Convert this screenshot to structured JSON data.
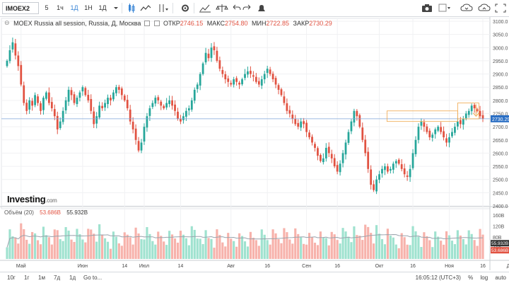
{
  "toolbar": {
    "symbol": "IMOEX2",
    "intervals": [
      "5",
      "1ч",
      "1Д",
      "1Н",
      "1Д"
    ],
    "active_interval_index": 2,
    "icons": [
      "dropdown-arrow-icon",
      "candles-icon",
      "indicators-icon",
      "drawing-icon",
      "gear-icon",
      "chart-type-icon",
      "scale-icon",
      "undo-icon",
      "redo-icon",
      "alert-icon",
      "camera-icon",
      "layout-icon",
      "cloud-download-icon",
      "cloud-upload-icon",
      "fullscreen-icon"
    ]
  },
  "legend": {
    "title": "MOEX Russia all session, Russia, Д, Москва",
    "open_label": "ОТКР",
    "open": "2746.15",
    "high_label": "МАКС",
    "high": "2754.80",
    "low_label": "МИН",
    "low": "2722.85",
    "close_label": "ЗАКР",
    "close": "2730.29"
  },
  "volume_legend": {
    "label": "Объём (20)",
    "value1": "53.686B",
    "value2": "55.932B"
  },
  "brand": {
    "name": "Investing",
    "suffix": ".com"
  },
  "bottombar": {
    "ranges": [
      "10г",
      "1г",
      "1м",
      "7д",
      "1д",
      "Go to..."
    ],
    "time": "16:05:12 (UTC+3)",
    "options": [
      "%",
      "log",
      "auto"
    ]
  },
  "chart_data": {
    "type": "candlestick",
    "price_axis": {
      "min": 2400,
      "max": 3100,
      "ticks": [
        2400,
        2450,
        2500,
        2550,
        2600,
        2650,
        2700,
        2750,
        2800,
        2850,
        2900,
        2950,
        3000,
        3050,
        3100
      ]
    },
    "current_price": {
      "value": 2730.29,
      "label": "2730.29"
    },
    "horizontal_line": 2730.29,
    "x_labels": [
      {
        "label": "Май",
        "bar": 5
      },
      {
        "label": "Июн",
        "bar": 27
      },
      {
        "label": "14",
        "bar": 42
      },
      {
        "label": "Июл",
        "bar": 49
      },
      {
        "label": "14",
        "bar": 62
      },
      {
        "label": "Авг",
        "bar": 80
      },
      {
        "label": "16",
        "bar": 93
      },
      {
        "label": "Сен",
        "bar": 107
      },
      {
        "label": "16",
        "bar": 118
      },
      {
        "label": "Окт",
        "bar": 133
      },
      {
        "label": "16",
        "bar": 145
      },
      {
        "label": "Ноя",
        "bar": 158
      },
      {
        "label": "16",
        "bar": 170
      },
      {
        "label": "Дек",
        "bar": 180
      },
      {
        "label": "16",
        "bar": 191
      }
    ],
    "closes": [
      2950,
      2990,
      3020,
      2970,
      2930,
      2860,
      2790,
      2760,
      2800,
      2780,
      2820,
      2790,
      2760,
      2810,
      2830,
      2790,
      2770,
      2740,
      2690,
      2720,
      2760,
      2800,
      2840,
      2820,
      2790,
      2810,
      2830,
      2850,
      2820,
      2800,
      2760,
      2710,
      2740,
      2780,
      2770,
      2790,
      2810,
      2800,
      2830,
      2850,
      2840,
      2820,
      2800,
      2770,
      2720,
      2690,
      2650,
      2610,
      2640,
      2700,
      2740,
      2770,
      2790,
      2810,
      2800,
      2780,
      2770,
      2790,
      2800,
      2780,
      2760,
      2730,
      2720,
      2740,
      2760,
      2770,
      2800,
      2840,
      2860,
      2900,
      2940,
      2980,
      2960,
      3000,
      2990,
      2950,
      2920,
      2900,
      2880,
      2870,
      2860,
      2880,
      2870,
      2860,
      2880,
      2900,
      2910,
      2900,
      2890,
      2870,
      2860,
      2880,
      2900,
      2920,
      2900,
      2880,
      2860,
      2840,
      2820,
      2790,
      2760,
      2750,
      2730,
      2710,
      2700,
      2720,
      2710,
      2680,
      2660,
      2640,
      2620,
      2590,
      2570,
      2580,
      2620,
      2600,
      2580,
      2550,
      2530,
      2560,
      2600,
      2640,
      2680,
      2720,
      2760,
      2740,
      2700,
      2650,
      2600,
      2540,
      2480,
      2460,
      2500,
      2520,
      2540,
      2550,
      2530,
      2540,
      2560,
      2570,
      2560,
      2540,
      2520,
      2510,
      2540,
      2600,
      2650,
      2700,
      2720,
      2700,
      2680,
      2660,
      2670,
      2690,
      2700,
      2680,
      2660,
      2640,
      2660,
      2680,
      2700,
      2720,
      2710,
      2730,
      2750,
      2760,
      2780,
      2770,
      2760,
      2740,
      2730
    ],
    "ohlc_note": "",
    "volume_axis": {
      "ticks": [
        "40B",
        "80B",
        "120B",
        "160B"
      ],
      "values": [
        40,
        80,
        120,
        160
      ]
    },
    "volume_ma_label": "55.932B",
    "volume_last_label": "53.686B"
  },
  "colors": {
    "up": "#26a69a",
    "down": "#e15241",
    "vol_up": "#9fe2cf",
    "vol_down": "#f7b2ab",
    "price_line": "#7fa6d8",
    "price_tag": "#2b6fc4",
    "ma_line": "#9aa3ad",
    "accent": "#f0a64a"
  }
}
